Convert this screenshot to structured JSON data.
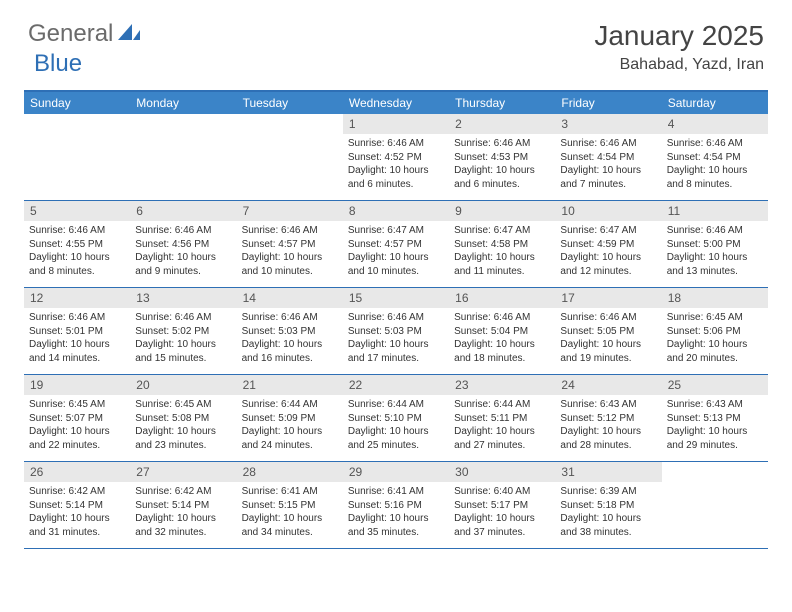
{
  "logo": {
    "part1": "General",
    "part2": "Blue"
  },
  "title": "January 2025",
  "location": "Bahabad, Yazd, Iran",
  "colors": {
    "header_bar": "#3b84c8",
    "accent_border": "#2e6fb5",
    "day_num_bg": "#e8e8e8",
    "text_dark": "#444444",
    "text_body": "#333333",
    "logo_gray": "#6b6b6b",
    "logo_blue": "#2e6fb5",
    "background": "#ffffff"
  },
  "weekdays": [
    "Sunday",
    "Monday",
    "Tuesday",
    "Wednesday",
    "Thursday",
    "Friday",
    "Saturday"
  ],
  "weeks": [
    [
      {
        "empty": true
      },
      {
        "empty": true
      },
      {
        "empty": true
      },
      {
        "day": "1",
        "sunrise": "6:46 AM",
        "sunset": "4:52 PM",
        "daylight": "10 hours and 6 minutes."
      },
      {
        "day": "2",
        "sunrise": "6:46 AM",
        "sunset": "4:53 PM",
        "daylight": "10 hours and 6 minutes."
      },
      {
        "day": "3",
        "sunrise": "6:46 AM",
        "sunset": "4:54 PM",
        "daylight": "10 hours and 7 minutes."
      },
      {
        "day": "4",
        "sunrise": "6:46 AM",
        "sunset": "4:54 PM",
        "daylight": "10 hours and 8 minutes."
      }
    ],
    [
      {
        "day": "5",
        "sunrise": "6:46 AM",
        "sunset": "4:55 PM",
        "daylight": "10 hours and 8 minutes."
      },
      {
        "day": "6",
        "sunrise": "6:46 AM",
        "sunset": "4:56 PM",
        "daylight": "10 hours and 9 minutes."
      },
      {
        "day": "7",
        "sunrise": "6:46 AM",
        "sunset": "4:57 PM",
        "daylight": "10 hours and 10 minutes."
      },
      {
        "day": "8",
        "sunrise": "6:47 AM",
        "sunset": "4:57 PM",
        "daylight": "10 hours and 10 minutes."
      },
      {
        "day": "9",
        "sunrise": "6:47 AM",
        "sunset": "4:58 PM",
        "daylight": "10 hours and 11 minutes."
      },
      {
        "day": "10",
        "sunrise": "6:47 AM",
        "sunset": "4:59 PM",
        "daylight": "10 hours and 12 minutes."
      },
      {
        "day": "11",
        "sunrise": "6:46 AM",
        "sunset": "5:00 PM",
        "daylight": "10 hours and 13 minutes."
      }
    ],
    [
      {
        "day": "12",
        "sunrise": "6:46 AM",
        "sunset": "5:01 PM",
        "daylight": "10 hours and 14 minutes."
      },
      {
        "day": "13",
        "sunrise": "6:46 AM",
        "sunset": "5:02 PM",
        "daylight": "10 hours and 15 minutes."
      },
      {
        "day": "14",
        "sunrise": "6:46 AM",
        "sunset": "5:03 PM",
        "daylight": "10 hours and 16 minutes."
      },
      {
        "day": "15",
        "sunrise": "6:46 AM",
        "sunset": "5:03 PM",
        "daylight": "10 hours and 17 minutes."
      },
      {
        "day": "16",
        "sunrise": "6:46 AM",
        "sunset": "5:04 PM",
        "daylight": "10 hours and 18 minutes."
      },
      {
        "day": "17",
        "sunrise": "6:46 AM",
        "sunset": "5:05 PM",
        "daylight": "10 hours and 19 minutes."
      },
      {
        "day": "18",
        "sunrise": "6:45 AM",
        "sunset": "5:06 PM",
        "daylight": "10 hours and 20 minutes."
      }
    ],
    [
      {
        "day": "19",
        "sunrise": "6:45 AM",
        "sunset": "5:07 PM",
        "daylight": "10 hours and 22 minutes."
      },
      {
        "day": "20",
        "sunrise": "6:45 AM",
        "sunset": "5:08 PM",
        "daylight": "10 hours and 23 minutes."
      },
      {
        "day": "21",
        "sunrise": "6:44 AM",
        "sunset": "5:09 PM",
        "daylight": "10 hours and 24 minutes."
      },
      {
        "day": "22",
        "sunrise": "6:44 AM",
        "sunset": "5:10 PM",
        "daylight": "10 hours and 25 minutes."
      },
      {
        "day": "23",
        "sunrise": "6:44 AM",
        "sunset": "5:11 PM",
        "daylight": "10 hours and 27 minutes."
      },
      {
        "day": "24",
        "sunrise": "6:43 AM",
        "sunset": "5:12 PM",
        "daylight": "10 hours and 28 minutes."
      },
      {
        "day": "25",
        "sunrise": "6:43 AM",
        "sunset": "5:13 PM",
        "daylight": "10 hours and 29 minutes."
      }
    ],
    [
      {
        "day": "26",
        "sunrise": "6:42 AM",
        "sunset": "5:14 PM",
        "daylight": "10 hours and 31 minutes."
      },
      {
        "day": "27",
        "sunrise": "6:42 AM",
        "sunset": "5:14 PM",
        "daylight": "10 hours and 32 minutes."
      },
      {
        "day": "28",
        "sunrise": "6:41 AM",
        "sunset": "5:15 PM",
        "daylight": "10 hours and 34 minutes."
      },
      {
        "day": "29",
        "sunrise": "6:41 AM",
        "sunset": "5:16 PM",
        "daylight": "10 hours and 35 minutes."
      },
      {
        "day": "30",
        "sunrise": "6:40 AM",
        "sunset": "5:17 PM",
        "daylight": "10 hours and 37 minutes."
      },
      {
        "day": "31",
        "sunrise": "6:39 AM",
        "sunset": "5:18 PM",
        "daylight": "10 hours and 38 minutes."
      },
      {
        "empty": true
      }
    ]
  ]
}
